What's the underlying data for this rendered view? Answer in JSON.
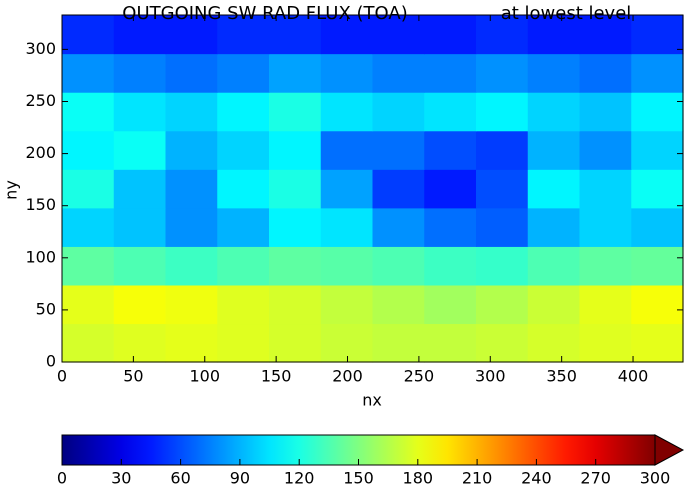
{
  "chart_data": {
    "type": "heatmap",
    "title": "OUTGOING SW RAD FLUX (TOA)",
    "subtitle": "at lowest level",
    "x_label": "nx",
    "y_label": "ny",
    "xlim": [
      0,
      435
    ],
    "ylim": [
      0,
      333
    ],
    "xticks": [
      0,
      50,
      100,
      150,
      200,
      250,
      300,
      350,
      400
    ],
    "yticks": [
      0,
      50,
      100,
      150,
      200,
      250,
      300
    ],
    "colormap": "jet",
    "z": [
      [
        175,
        178,
        180,
        178,
        175,
        172,
        170,
        170,
        172,
        175,
        178,
        180
      ],
      [
        180,
        185,
        183,
        178,
        175,
        170,
        165,
        160,
        165,
        172,
        180,
        185
      ],
      [
        140,
        135,
        130,
        135,
        140,
        138,
        135,
        130,
        128,
        135,
        140,
        142
      ],
      [
        100,
        95,
        80,
        90,
        110,
        105,
        80,
        70,
        65,
        90,
        100,
        95
      ],
      [
        120,
        95,
        80,
        110,
        120,
        85,
        55,
        45,
        60,
        110,
        100,
        115
      ],
      [
        110,
        115,
        90,
        100,
        110,
        70,
        70,
        60,
        55,
        90,
        80,
        100
      ],
      [
        115,
        105,
        100,
        110,
        120,
        105,
        100,
        105,
        110,
        100,
        95,
        110
      ],
      [
        80,
        75,
        70,
        75,
        85,
        80,
        75,
        75,
        80,
        75,
        70,
        80
      ],
      [
        50,
        45,
        45,
        50,
        50,
        45,
        45,
        45,
        50,
        45,
        45,
        50
      ]
    ],
    "colorbar": {
      "lim": [
        0,
        300
      ],
      "ticks": [
        0,
        30,
        60,
        90,
        120,
        150,
        180,
        210,
        240,
        270,
        300
      ],
      "extend": "max"
    }
  }
}
